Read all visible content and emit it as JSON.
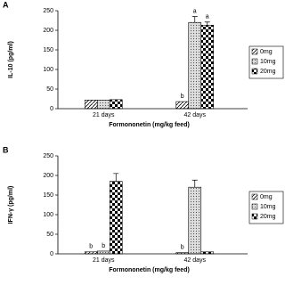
{
  "chart_data": [
    {
      "type": "bar",
      "panel": "A",
      "ylabel": "IL-10 (pg/ml)",
      "xlabel": "Formononetin (mg/kg feed)",
      "categories": [
        "21 days",
        "42 days"
      ],
      "ylim": [
        0,
        250
      ],
      "yticks": [
        0,
        50,
        100,
        150,
        200,
        250
      ],
      "series": [
        {
          "name": "0mg",
          "values": [
            22,
            18
          ],
          "errors": [
            null,
            null
          ],
          "letters": [
            null,
            "b"
          ]
        },
        {
          "name": "10mg",
          "values": [
            22,
            220
          ],
          "errors": [
            null,
            15
          ],
          "letters": [
            null,
            "a"
          ]
        },
        {
          "name": "20mg",
          "values": [
            23,
            213
          ],
          "errors": [
            null,
            8
          ],
          "letters": [
            null,
            "a"
          ]
        }
      ]
    },
    {
      "type": "bar",
      "panel": "B",
      "ylabel": "IFN-γ (pg/ml)",
      "xlabel": "Formononetin (mg/kg feed)",
      "categories": [
        "21 days",
        "42 days"
      ],
      "ylim": [
        0,
        250
      ],
      "yticks": [
        0,
        50,
        100,
        150,
        200,
        250
      ],
      "series": [
        {
          "name": "0mg",
          "values": [
            5,
            3
          ],
          "errors": [
            null,
            null
          ],
          "letters": [
            "b",
            "b"
          ]
        },
        {
          "name": "10mg",
          "values": [
            7,
            170
          ],
          "errors": [
            null,
            18
          ],
          "letters": [
            "b",
            null
          ]
        },
        {
          "name": "20mg",
          "values": [
            185,
            5
          ],
          "errors": [
            20,
            null
          ],
          "letters": [
            null,
            null
          ]
        }
      ]
    }
  ]
}
